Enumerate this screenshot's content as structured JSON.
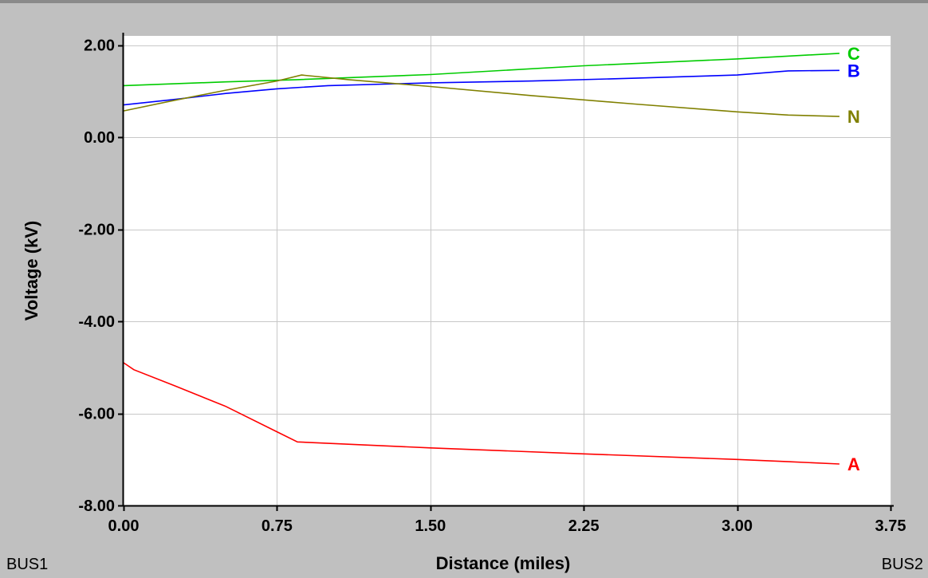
{
  "chart_data": {
    "type": "line",
    "xlabel": "Distance (miles)",
    "ylabel": "Voltage (kV)",
    "xlim": [
      0,
      3.75
    ],
    "ylim": [
      -8,
      2.2
    ],
    "x_ticks": [
      "0.00",
      "0.75",
      "1.50",
      "2.25",
      "3.00",
      "3.75"
    ],
    "x_tick_values": [
      0,
      0.75,
      1.5,
      2.25,
      3.0,
      3.75
    ],
    "y_ticks": [
      "2.00",
      "0.00",
      "-2.00",
      "-4.00",
      "-6.00",
      "-8.00"
    ],
    "y_tick_values": [
      2,
      0,
      -2,
      -4,
      -6,
      -8
    ],
    "grid": true,
    "start_label": "BUS1",
    "end_label": "BUS2",
    "series": [
      {
        "name": "A",
        "color": "#ff0000",
        "points": [
          [
            0.0,
            -4.9
          ],
          [
            0.05,
            -5.05
          ],
          [
            0.25,
            -5.4
          ],
          [
            0.5,
            -5.85
          ],
          [
            0.75,
            -6.4
          ],
          [
            0.85,
            -6.62
          ],
          [
            1.5,
            -6.75
          ],
          [
            2.25,
            -6.88
          ],
          [
            3.0,
            -7.0
          ],
          [
            3.25,
            -7.05
          ],
          [
            3.5,
            -7.1
          ]
        ]
      },
      {
        "name": "B",
        "color": "#0000ff",
        "points": [
          [
            0.0,
            0.7
          ],
          [
            0.25,
            0.82
          ],
          [
            0.5,
            0.95
          ],
          [
            0.75,
            1.05
          ],
          [
            1.0,
            1.12
          ],
          [
            1.5,
            1.18
          ],
          [
            2.0,
            1.22
          ],
          [
            2.5,
            1.28
          ],
          [
            3.0,
            1.35
          ],
          [
            3.25,
            1.44
          ],
          [
            3.5,
            1.45
          ]
        ]
      },
      {
        "name": "C",
        "color": "#00cc00",
        "points": [
          [
            0.0,
            1.12
          ],
          [
            0.5,
            1.2
          ],
          [
            0.85,
            1.25
          ],
          [
            1.5,
            1.36
          ],
          [
            2.25,
            1.55
          ],
          [
            3.0,
            1.7
          ],
          [
            3.5,
            1.82
          ]
        ]
      },
      {
        "name": "N",
        "color": "#808000",
        "points": [
          [
            0.0,
            0.57
          ],
          [
            0.25,
            0.8
          ],
          [
            0.5,
            1.02
          ],
          [
            0.75,
            1.22
          ],
          [
            0.87,
            1.35
          ],
          [
            1.1,
            1.25
          ],
          [
            1.5,
            1.1
          ],
          [
            2.0,
            0.9
          ],
          [
            2.5,
            0.72
          ],
          [
            3.0,
            0.55
          ],
          [
            3.25,
            0.48
          ],
          [
            3.5,
            0.45
          ]
        ]
      }
    ]
  }
}
